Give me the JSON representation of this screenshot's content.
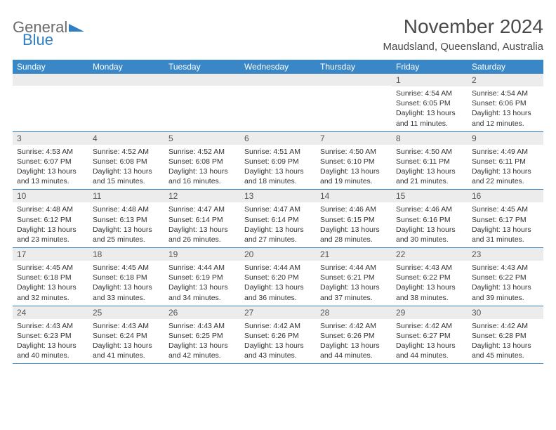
{
  "logo": {
    "line1": "General",
    "line2": "Blue",
    "tri_color": "#2f7fc2"
  },
  "title": "November 2024",
  "location": "Maudsland, Queensland, Australia",
  "colors": {
    "header_bg": "#3a87c8",
    "header_text": "#ffffff",
    "daynum_bg": "#ececec",
    "row_border": "#3a87c8"
  },
  "weekdays": [
    "Sunday",
    "Monday",
    "Tuesday",
    "Wednesday",
    "Thursday",
    "Friday",
    "Saturday"
  ],
  "weeks": [
    [
      null,
      null,
      null,
      null,
      null,
      {
        "n": "1",
        "sr": "4:54 AM",
        "ss": "6:05 PM",
        "dl": "13 hours and 11 minutes."
      },
      {
        "n": "2",
        "sr": "4:54 AM",
        "ss": "6:06 PM",
        "dl": "13 hours and 12 minutes."
      }
    ],
    [
      {
        "n": "3",
        "sr": "4:53 AM",
        "ss": "6:07 PM",
        "dl": "13 hours and 13 minutes."
      },
      {
        "n": "4",
        "sr": "4:52 AM",
        "ss": "6:08 PM",
        "dl": "13 hours and 15 minutes."
      },
      {
        "n": "5",
        "sr": "4:52 AM",
        "ss": "6:08 PM",
        "dl": "13 hours and 16 minutes."
      },
      {
        "n": "6",
        "sr": "4:51 AM",
        "ss": "6:09 PM",
        "dl": "13 hours and 18 minutes."
      },
      {
        "n": "7",
        "sr": "4:50 AM",
        "ss": "6:10 PM",
        "dl": "13 hours and 19 minutes."
      },
      {
        "n": "8",
        "sr": "4:50 AM",
        "ss": "6:11 PM",
        "dl": "13 hours and 21 minutes."
      },
      {
        "n": "9",
        "sr": "4:49 AM",
        "ss": "6:11 PM",
        "dl": "13 hours and 22 minutes."
      }
    ],
    [
      {
        "n": "10",
        "sr": "4:48 AM",
        "ss": "6:12 PM",
        "dl": "13 hours and 23 minutes."
      },
      {
        "n": "11",
        "sr": "4:48 AM",
        "ss": "6:13 PM",
        "dl": "13 hours and 25 minutes."
      },
      {
        "n": "12",
        "sr": "4:47 AM",
        "ss": "6:14 PM",
        "dl": "13 hours and 26 minutes."
      },
      {
        "n": "13",
        "sr": "4:47 AM",
        "ss": "6:14 PM",
        "dl": "13 hours and 27 minutes."
      },
      {
        "n": "14",
        "sr": "4:46 AM",
        "ss": "6:15 PM",
        "dl": "13 hours and 28 minutes."
      },
      {
        "n": "15",
        "sr": "4:46 AM",
        "ss": "6:16 PM",
        "dl": "13 hours and 30 minutes."
      },
      {
        "n": "16",
        "sr": "4:45 AM",
        "ss": "6:17 PM",
        "dl": "13 hours and 31 minutes."
      }
    ],
    [
      {
        "n": "17",
        "sr": "4:45 AM",
        "ss": "6:18 PM",
        "dl": "13 hours and 32 minutes."
      },
      {
        "n": "18",
        "sr": "4:45 AM",
        "ss": "6:18 PM",
        "dl": "13 hours and 33 minutes."
      },
      {
        "n": "19",
        "sr": "4:44 AM",
        "ss": "6:19 PM",
        "dl": "13 hours and 34 minutes."
      },
      {
        "n": "20",
        "sr": "4:44 AM",
        "ss": "6:20 PM",
        "dl": "13 hours and 36 minutes."
      },
      {
        "n": "21",
        "sr": "4:44 AM",
        "ss": "6:21 PM",
        "dl": "13 hours and 37 minutes."
      },
      {
        "n": "22",
        "sr": "4:43 AM",
        "ss": "6:22 PM",
        "dl": "13 hours and 38 minutes."
      },
      {
        "n": "23",
        "sr": "4:43 AM",
        "ss": "6:22 PM",
        "dl": "13 hours and 39 minutes."
      }
    ],
    [
      {
        "n": "24",
        "sr": "4:43 AM",
        "ss": "6:23 PM",
        "dl": "13 hours and 40 minutes."
      },
      {
        "n": "25",
        "sr": "4:43 AM",
        "ss": "6:24 PM",
        "dl": "13 hours and 41 minutes."
      },
      {
        "n": "26",
        "sr": "4:43 AM",
        "ss": "6:25 PM",
        "dl": "13 hours and 42 minutes."
      },
      {
        "n": "27",
        "sr": "4:42 AM",
        "ss": "6:26 PM",
        "dl": "13 hours and 43 minutes."
      },
      {
        "n": "28",
        "sr": "4:42 AM",
        "ss": "6:26 PM",
        "dl": "13 hours and 44 minutes."
      },
      {
        "n": "29",
        "sr": "4:42 AM",
        "ss": "6:27 PM",
        "dl": "13 hours and 44 minutes."
      },
      {
        "n": "30",
        "sr": "4:42 AM",
        "ss": "6:28 PM",
        "dl": "13 hours and 45 minutes."
      }
    ]
  ],
  "labels": {
    "sunrise": "Sunrise:",
    "sunset": "Sunset:",
    "daylight": "Daylight:"
  }
}
